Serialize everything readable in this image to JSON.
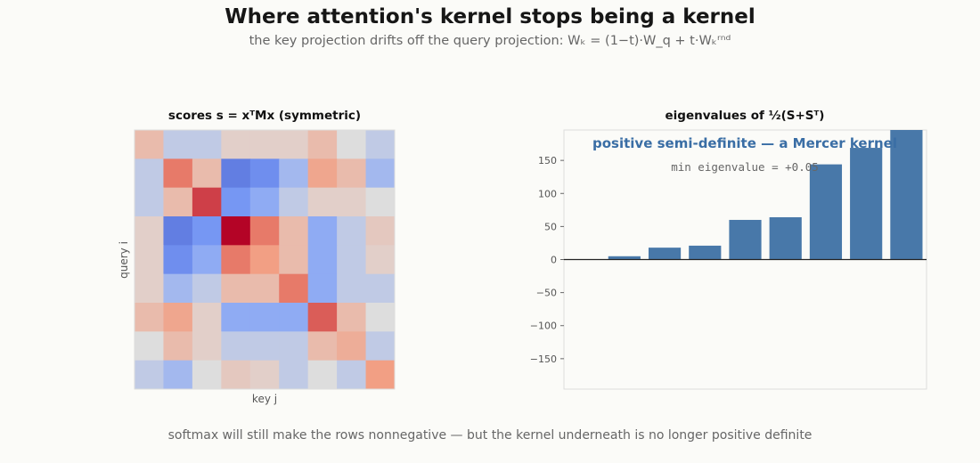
{
  "title": "Where attention's kernel stops being a kernel",
  "subtitle": "the key projection drifts off the query projection:  Wₖ = (1−t)·W_q + t·Wₖʳⁿᵈ",
  "footer": "softmax will still make the rows nonnegative — but the kernel underneath is no longer positive definite",
  "colors": {
    "background": "#fbfbf8",
    "bar": "#4878a9",
    "annotation": "#3a6ea5",
    "frame": "#d9d9d9"
  },
  "chart_data": [
    {
      "type": "heatmap",
      "title": "scores  s = xᵀMx   (symmetric)",
      "xlabel": "key j",
      "ylabel": "query i",
      "colormap": "coolwarm",
      "clim": [
        -1,
        1
      ],
      "matrix": [
        [
          0.25,
          -0.15,
          -0.15,
          0.1,
          0.1,
          0.1,
          0.25,
          0.0,
          -0.15
        ],
        [
          -0.15,
          0.6,
          0.25,
          -0.7,
          -0.6,
          -0.3,
          0.4,
          0.25,
          -0.3
        ],
        [
          -0.15,
          0.25,
          0.8,
          -0.55,
          -0.4,
          -0.15,
          0.1,
          0.1,
          0.0
        ],
        [
          0.1,
          -0.7,
          -0.55,
          1.0,
          0.6,
          0.25,
          -0.4,
          -0.15,
          0.15
        ],
        [
          0.1,
          -0.6,
          -0.4,
          0.6,
          0.45,
          0.25,
          -0.4,
          -0.15,
          0.1
        ],
        [
          0.1,
          -0.3,
          -0.15,
          0.25,
          0.25,
          0.6,
          -0.4,
          -0.15,
          -0.15
        ],
        [
          0.25,
          0.4,
          0.1,
          -0.4,
          -0.4,
          -0.4,
          0.7,
          0.25,
          0.0
        ],
        [
          0.0,
          0.25,
          0.1,
          -0.15,
          -0.15,
          -0.15,
          0.25,
          0.35,
          -0.15
        ],
        [
          -0.15,
          -0.3,
          0.0,
          0.15,
          0.1,
          -0.15,
          0.0,
          -0.15,
          0.45
        ]
      ]
    },
    {
      "type": "bar",
      "title": "eigenvalues of ½(S+Sᵀ)",
      "values": [
        0.05,
        5,
        18,
        21,
        60,
        64,
        144,
        169,
        196
      ],
      "ylim": [
        -196,
        196
      ],
      "yticks": [
        -150,
        -100,
        -50,
        0,
        50,
        100,
        150
      ],
      "annotation": "positive semi-definite — a Mercer kernel",
      "annotation2": "min eigenvalue = +0.05"
    }
  ]
}
